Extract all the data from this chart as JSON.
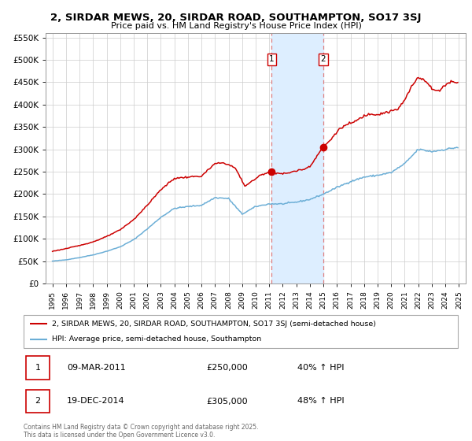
{
  "title": "2, SIRDAR MEWS, 20, SIRDAR ROAD, SOUTHAMPTON, SO17 3SJ",
  "subtitle": "Price paid vs. HM Land Registry's House Price Index (HPI)",
  "legend_line1": "2, SIRDAR MEWS, 20, SIRDAR ROAD, SOUTHAMPTON, SO17 3SJ (semi-detached house)",
  "legend_line2": "HPI: Average price, semi-detached house, Southampton",
  "footer": "Contains HM Land Registry data © Crown copyright and database right 2025.\nThis data is licensed under the Open Government Licence v3.0.",
  "sale1_date": "09-MAR-2011",
  "sale1_price": 250000,
  "sale1_hpi": "40% ↑ HPI",
  "sale2_date": "19-DEC-2014",
  "sale2_price": 305000,
  "sale2_hpi": "48% ↑ HPI",
  "sale1_x": 2011.19,
  "sale2_x": 2014.97,
  "hpi_color": "#6baed6",
  "price_color": "#cc0000",
  "shading_color": "#ddeeff",
  "grid_color": "#cccccc",
  "background_color": "#ffffff",
  "ylim": [
    0,
    560000
  ],
  "xlim_start": 1994.5,
  "xlim_end": 2025.5,
  "hpi_anchors": [
    [
      1995.0,
      50000
    ],
    [
      1996.0,
      53000
    ],
    [
      1997.0,
      58000
    ],
    [
      1998.0,
      64000
    ],
    [
      1999.0,
      72000
    ],
    [
      2000.0,
      82000
    ],
    [
      2001.0,
      98000
    ],
    [
      2002.0,
      122000
    ],
    [
      2003.0,
      148000
    ],
    [
      2004.0,
      168000
    ],
    [
      2005.0,
      172000
    ],
    [
      2006.0,
      175000
    ],
    [
      2007.0,
      192000
    ],
    [
      2008.0,
      190000
    ],
    [
      2009.0,
      155000
    ],
    [
      2010.0,
      172000
    ],
    [
      2011.0,
      178000
    ],
    [
      2012.0,
      178000
    ],
    [
      2013.0,
      182000
    ],
    [
      2014.0,
      188000
    ],
    [
      2015.0,
      200000
    ],
    [
      2016.0,
      215000
    ],
    [
      2017.0,
      228000
    ],
    [
      2018.0,
      238000
    ],
    [
      2019.0,
      242000
    ],
    [
      2020.0,
      248000
    ],
    [
      2021.0,
      268000
    ],
    [
      2022.0,
      300000
    ],
    [
      2023.0,
      295000
    ],
    [
      2024.0,
      300000
    ],
    [
      2025.0,
      305000
    ]
  ],
  "price_anchors": [
    [
      1995.0,
      72000
    ],
    [
      1996.0,
      78000
    ],
    [
      1997.0,
      85000
    ],
    [
      1998.0,
      93000
    ],
    [
      1999.0,
      105000
    ],
    [
      2000.0,
      120000
    ],
    [
      2001.0,
      143000
    ],
    [
      2002.0,
      175000
    ],
    [
      2003.0,
      210000
    ],
    [
      2004.0,
      235000
    ],
    [
      2005.0,
      238000
    ],
    [
      2006.0,
      240000
    ],
    [
      2007.0,
      268000
    ],
    [
      2007.7,
      270000
    ],
    [
      2008.5,
      258000
    ],
    [
      2009.2,
      218000
    ],
    [
      2009.8,
      230000
    ],
    [
      2010.5,
      245000
    ],
    [
      2011.19,
      250000
    ],
    [
      2011.5,
      248000
    ],
    [
      2012.0,
      245000
    ],
    [
      2012.5,
      248000
    ],
    [
      2013.0,
      252000
    ],
    [
      2013.5,
      255000
    ],
    [
      2014.0,
      262000
    ],
    [
      2014.97,
      305000
    ],
    [
      2015.5,
      320000
    ],
    [
      2016.0,
      340000
    ],
    [
      2016.5,
      352000
    ],
    [
      2017.0,
      358000
    ],
    [
      2017.5,
      365000
    ],
    [
      2018.0,
      375000
    ],
    [
      2018.5,
      380000
    ],
    [
      2019.0,
      378000
    ],
    [
      2019.5,
      382000
    ],
    [
      2020.0,
      385000
    ],
    [
      2020.5,
      390000
    ],
    [
      2021.0,
      410000
    ],
    [
      2021.5,
      440000
    ],
    [
      2022.0,
      462000
    ],
    [
      2022.5,
      455000
    ],
    [
      2023.0,
      435000
    ],
    [
      2023.5,
      430000
    ],
    [
      2024.0,
      445000
    ],
    [
      2024.5,
      452000
    ],
    [
      2025.0,
      450000
    ]
  ]
}
